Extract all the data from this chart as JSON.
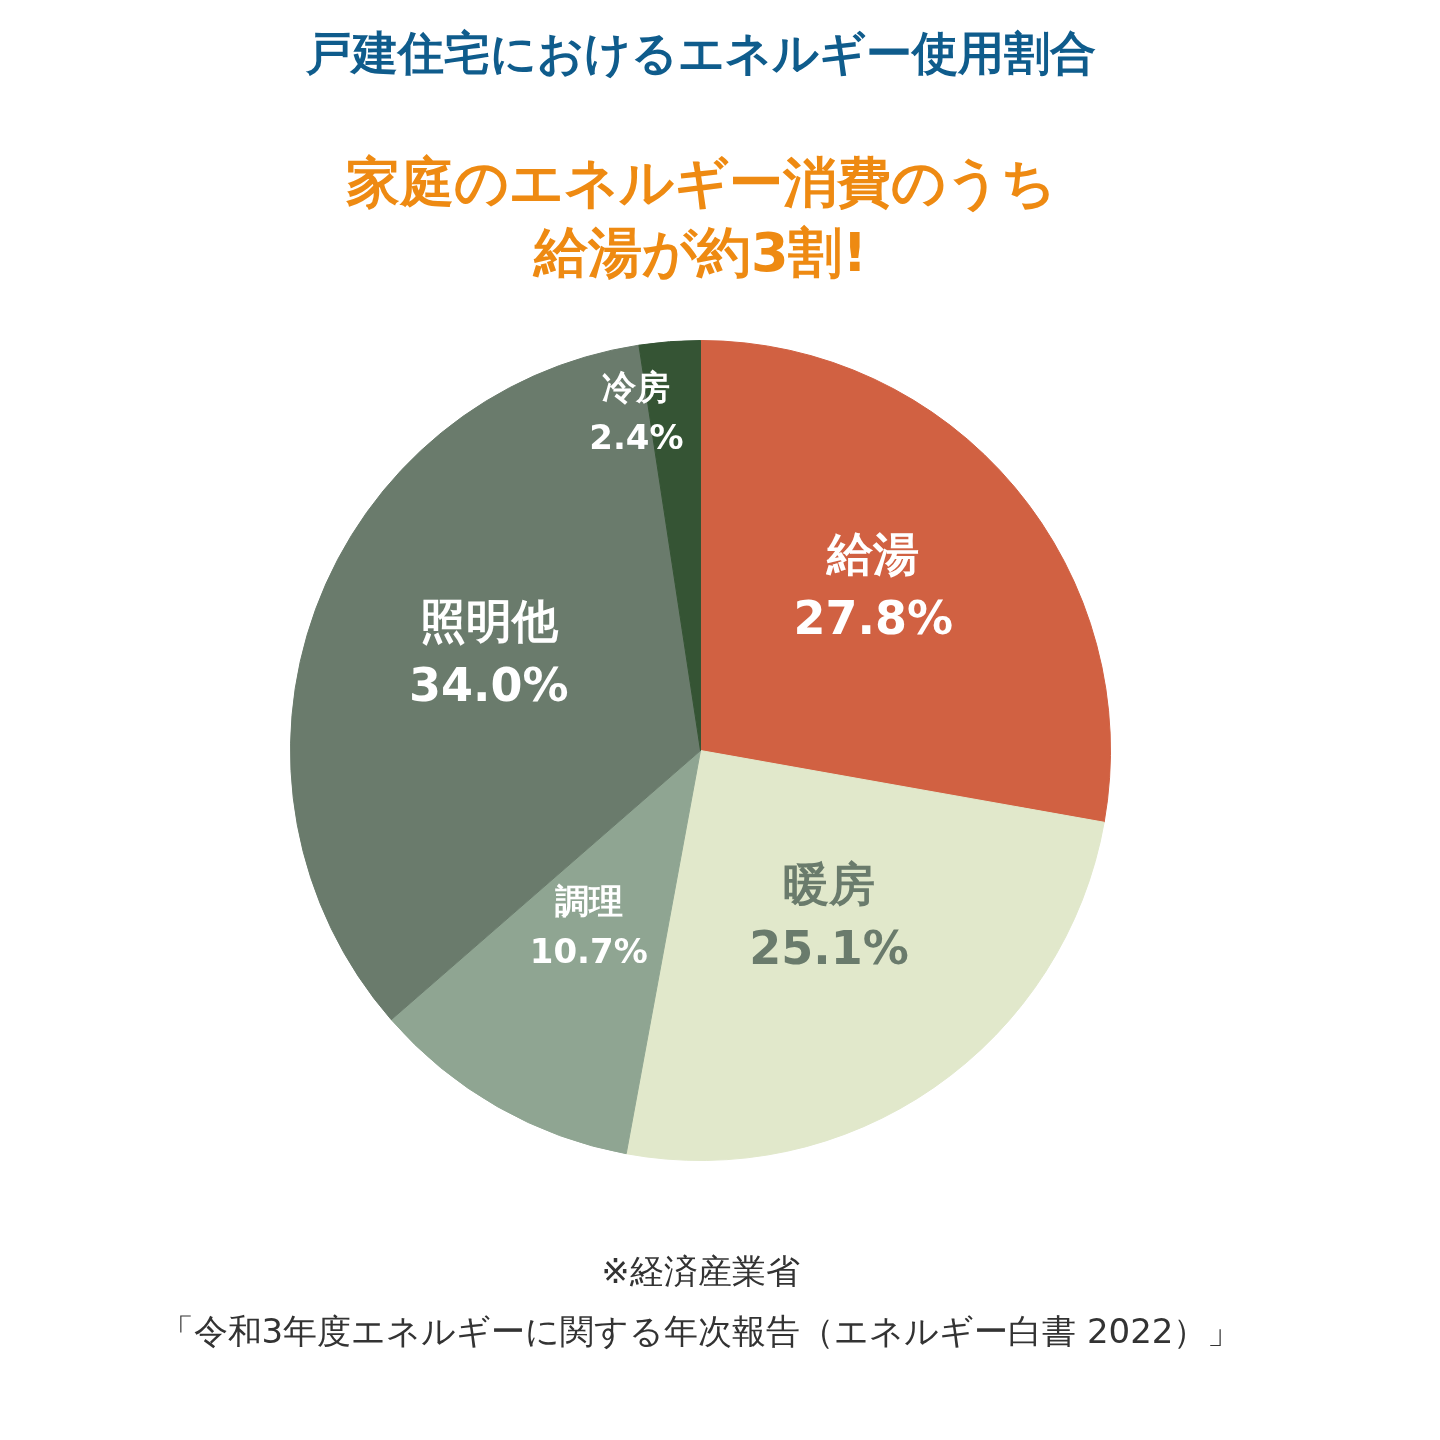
{
  "chart_data": {
    "type": "pie",
    "title": "戸建住宅におけるエネルギー使用割合",
    "subtitle": "家庭のエネルギー消費のうち給湯が約3割!",
    "categories": [
      "給湯",
      "暖房",
      "調理",
      "照明他",
      "冷房"
    ],
    "values": [
      27.8,
      25.1,
      10.7,
      34.0,
      2.4
    ],
    "colors": [
      "#d16142",
      "#e1e8cb",
      "#8fa592",
      "#6a7b6c",
      "#355434"
    ],
    "value_labels": [
      "27.8%",
      "25.1%",
      "10.7%",
      "34.0%",
      "2.4%"
    ],
    "annotations": [
      "※経済産業省",
      "「令和3年度エネルギーに関する年次報告（エネルギー白書 2022）」"
    ]
  }
}
